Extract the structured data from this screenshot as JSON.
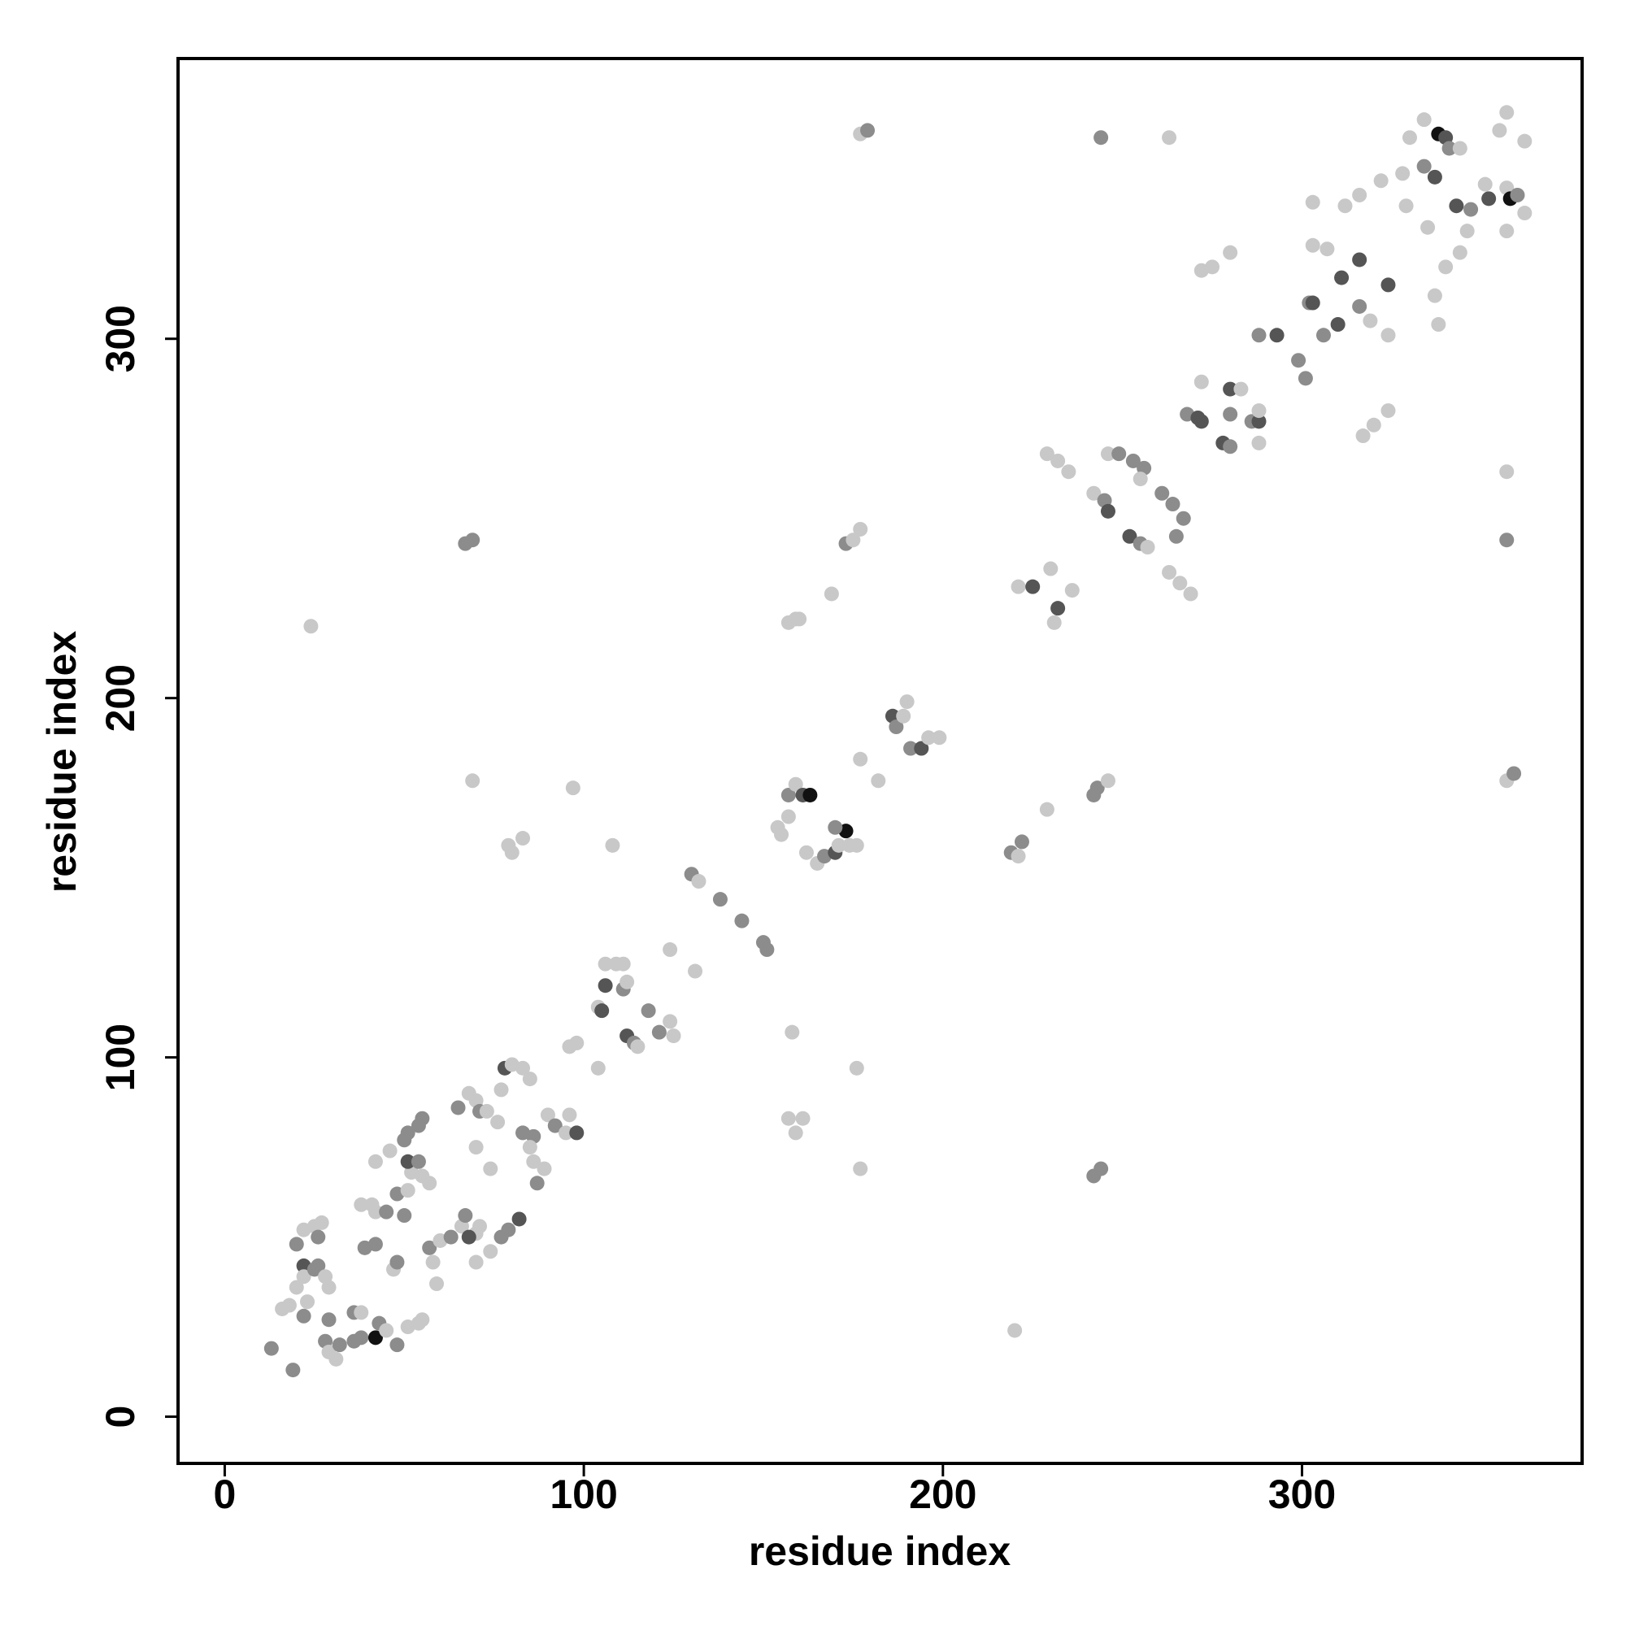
{
  "chart_data": {
    "type": "scatter",
    "xlabel": "residue index",
    "ylabel": "residue index",
    "xlim": [
      -13,
      378
    ],
    "ylim": [
      -13,
      378
    ],
    "xticks": [
      0,
      100,
      200,
      300
    ],
    "yticks": [
      0,
      100,
      200,
      300
    ],
    "x": [
      13,
      19,
      20,
      22,
      16,
      18,
      20,
      22,
      25,
      26,
      22,
      23,
      29,
      28,
      25,
      27,
      22,
      26,
      29,
      28,
      29,
      31,
      32,
      36,
      38,
      36,
      38,
      42,
      43,
      45,
      48,
      51,
      54,
      55,
      39,
      42,
      47,
      48,
      38,
      41,
      42,
      45,
      50,
      48,
      51,
      52,
      51,
      54,
      55,
      57,
      42,
      46,
      50,
      51,
      54,
      55,
      57,
      60,
      58,
      59,
      63,
      66,
      67,
      70,
      71,
      68,
      65,
      70,
      68,
      71,
      73,
      76,
      70,
      74,
      70,
      74,
      77,
      79,
      82,
      77,
      78,
      80,
      83,
      85,
      83,
      86,
      85,
      86,
      87,
      89,
      90,
      92,
      95,
      96,
      98,
      96,
      98,
      104,
      104,
      105,
      106,
      109,
      111,
      106,
      111,
      112,
      112,
      114,
      115,
      118,
      121,
      124,
      125,
      124,
      130,
      132,
      131,
      138,
      144,
      150,
      151,
      157,
      159,
      161,
      158,
      157,
      159,
      160,
      154,
      155,
      157,
      157,
      159,
      161,
      163,
      162,
      165,
      167,
      170,
      171,
      173,
      170,
      174,
      176,
      177,
      182,
      186,
      187,
      190,
      189,
      191,
      194,
      196,
      199,
      169,
      173,
      175,
      177,
      176,
      177,
      177,
      179,
      219,
      221,
      222,
      229,
      221,
      225,
      230,
      232,
      231,
      236,
      220,
      242,
      244,
      242,
      243,
      246,
      244,
      263,
      229,
      232,
      235,
      242,
      245,
      246,
      246,
      249,
      253,
      256,
      252,
      255,
      257,
      255,
      261,
      264,
      265,
      267,
      263,
      266,
      269,
      272,
      268,
      271,
      272,
      278,
      280,
      280,
      283,
      280,
      286,
      288,
      288,
      288,
      272,
      275,
      280,
      288,
      293,
      299,
      301,
      302,
      303,
      306,
      310,
      303,
      307,
      311,
      316,
      324,
      316,
      319,
      324,
      317,
      320,
      324,
      303,
      312,
      316,
      322,
      328,
      329,
      330,
      334,
      337,
      334,
      338,
      340,
      341,
      337,
      338,
      340,
      344,
      335,
      343,
      346,
      344,
      347,
      351,
      352,
      357,
      358,
      360,
      355,
      357,
      362,
      357,
      362,
      357,
      357,
      357,
      359,
      24,
      67,
      69,
      69,
      97,
      79,
      83,
      80,
      108
    ],
    "y": [
      19,
      13,
      48,
      42,
      30,
      31,
      36,
      39,
      41,
      42,
      28,
      32,
      36,
      39,
      53,
      54,
      52,
      50,
      27,
      21,
      18,
      16,
      20,
      21,
      22,
      29,
      29,
      22,
      26,
      24,
      20,
      25,
      26,
      27,
      47,
      48,
      41,
      43,
      59,
      59,
      57,
      57,
      56,
      62,
      63,
      68,
      71,
      71,
      67,
      65,
      71,
      74,
      77,
      79,
      81,
      83,
      47,
      49,
      43,
      37,
      50,
      53,
      56,
      51,
      53,
      50,
      86,
      88,
      90,
      85,
      85,
      82,
      75,
      69,
      43,
      46,
      50,
      52,
      55,
      91,
      97,
      98,
      97,
      94,
      79,
      78,
      75,
      71,
      65,
      69,
      84,
      81,
      79,
      84,
      79,
      103,
      104,
      97,
      114,
      113,
      126,
      126,
      126,
      120,
      119,
      121,
      106,
      104,
      103,
      113,
      107,
      110,
      106,
      130,
      151,
      149,
      124,
      144,
      138,
      132,
      130,
      83,
      79,
      83,
      107,
      221,
      222,
      222,
      164,
      162,
      167,
      173,
      176,
      173,
      173,
      157,
      154,
      156,
      157,
      159,
      163,
      164,
      159,
      159,
      183,
      177,
      195,
      192,
      199,
      195,
      186,
      186,
      189,
      189,
      229,
      243,
      244,
      247,
      97,
      69,
      357,
      358,
      157,
      156,
      160,
      169,
      231,
      231,
      236,
      225,
      221,
      230,
      24,
      67,
      69,
      173,
      175,
      177,
      356,
      356,
      268,
      266,
      263,
      257,
      255,
      252,
      268,
      268,
      266,
      264,
      245,
      243,
      242,
      261,
      257,
      254,
      245,
      250,
      235,
      232,
      229,
      288,
      279,
      278,
      277,
      271,
      270,
      286,
      286,
      279,
      277,
      277,
      280,
      271,
      319,
      320,
      324,
      301,
      301,
      294,
      289,
      310,
      310,
      301,
      304,
      326,
      325,
      317,
      322,
      315,
      309,
      305,
      301,
      273,
      276,
      280,
      338,
      337,
      340,
      344,
      346,
      337,
      356,
      348,
      345,
      361,
      357,
      356,
      353,
      312,
      304,
      320,
      353,
      331,
      337,
      330,
      324,
      336,
      343,
      339,
      342,
      339,
      340,
      358,
      363,
      355,
      330,
      335,
      263,
      244,
      177,
      179,
      220,
      243,
      244,
      177,
      175,
      159,
      161,
      157,
      159
    ],
    "colors": [
      "#8c8c8c",
      "#8c8c8c",
      "#8c8c8c",
      "#555555",
      "#c8c8c8",
      "#c8c8c8",
      "#c8c8c8",
      "#c8c8c8",
      "#8c8c8c",
      "#8c8c8c",
      "#8c8c8c",
      "#c8c8c8",
      "#c8c8c8",
      "#c8c8c8",
      "#c8c8c8",
      "#c8c8c8",
      "#c8c8c8",
      "#8c8c8c",
      "#8c8c8c",
      "#8c8c8c",
      "#c8c8c8",
      "#c8c8c8",
      "#8c8c8c",
      "#8c8c8c",
      "#8c8c8c",
      "#8c8c8c",
      "#c8c8c8",
      "#111111",
      "#8c8c8c",
      "#c8c8c8",
      "#8c8c8c",
      "#c8c8c8",
      "#c8c8c8",
      "#c8c8c8",
      "#8c8c8c",
      "#8c8c8c",
      "#c8c8c8",
      "#8c8c8c",
      "#c8c8c8",
      "#c8c8c8",
      "#c8c8c8",
      "#8c8c8c",
      "#8c8c8c",
      "#8c8c8c",
      "#c8c8c8",
      "#c8c8c8",
      "#555555",
      "#8c8c8c",
      "#c8c8c8",
      "#c8c8c8",
      "#c8c8c8",
      "#c8c8c8",
      "#8c8c8c",
      "#8c8c8c",
      "#8c8c8c",
      "#8c8c8c",
      "#8c8c8c",
      "#c8c8c8",
      "#c8c8c8",
      "#c8c8c8",
      "#8c8c8c",
      "#c8c8c8",
      "#8c8c8c",
      "#c8c8c8",
      "#c8c8c8",
      "#555555",
      "#8c8c8c",
      "#c8c8c8",
      "#c8c8c8",
      "#8c8c8c",
      "#c8c8c8",
      "#c8c8c8",
      "#c8c8c8",
      "#c8c8c8",
      "#c8c8c8",
      "#c8c8c8",
      "#8c8c8c",
      "#8c8c8c",
      "#555555",
      "#c8c8c8",
      "#555555",
      "#c8c8c8",
      "#c8c8c8",
      "#c8c8c8",
      "#8c8c8c",
      "#8c8c8c",
      "#c8c8c8",
      "#c8c8c8",
      "#8c8c8c",
      "#c8c8c8",
      "#c8c8c8",
      "#8c8c8c",
      "#c8c8c8",
      "#c8c8c8",
      "#555555",
      "#c8c8c8",
      "#c8c8c8",
      "#c8c8c8",
      "#c8c8c8",
      "#555555",
      "#c8c8c8",
      "#c8c8c8",
      "#c8c8c8",
      "#555555",
      "#8c8c8c",
      "#c8c8c8",
      "#555555",
      "#8c8c8c",
      "#c8c8c8",
      "#8c8c8c",
      "#8c8c8c",
      "#c8c8c8",
      "#c8c8c8",
      "#c8c8c8",
      "#8c8c8c",
      "#c8c8c8",
      "#c8c8c8",
      "#8c8c8c",
      "#8c8c8c",
      "#8c8c8c",
      "#8c8c8c",
      "#c8c8c8",
      "#c8c8c8",
      "#c8c8c8",
      "#c8c8c8",
      "#c8c8c8",
      "#c8c8c8",
      "#c8c8c8",
      "#c8c8c8",
      "#c8c8c8",
      "#c8c8c8",
      "#8c8c8c",
      "#c8c8c8",
      "#555555",
      "#111111",
      "#c8c8c8",
      "#c8c8c8",
      "#8c8c8c",
      "#555555",
      "#c8c8c8",
      "#111111",
      "#8c8c8c",
      "#c8c8c8",
      "#c8c8c8",
      "#c8c8c8",
      "#c8c8c8",
      "#555555",
      "#8c8c8c",
      "#c8c8c8",
      "#c8c8c8",
      "#8c8c8c",
      "#555555",
      "#c8c8c8",
      "#c8c8c8",
      "#c8c8c8",
      "#8c8c8c",
      "#c8c8c8",
      "#c8c8c8",
      "#c8c8c8",
      "#c8c8c8",
      "#c8c8c8",
      "#8c8c8c",
      "#8c8c8c",
      "#c8c8c8",
      "#8c8c8c",
      "#c8c8c8",
      "#c8c8c8",
      "#555555",
      "#c8c8c8",
      "#555555",
      "#c8c8c8",
      "#c8c8c8",
      "#c8c8c8",
      "#8c8c8c",
      "#8c8c8c",
      "#8c8c8c",
      "#8c8c8c",
      "#c8c8c8",
      "#8c8c8c",
      "#c8c8c8",
      "#c8c8c8",
      "#c8c8c8",
      "#c8c8c8",
      "#c8c8c8",
      "#8c8c8c",
      "#555555",
      "#c8c8c8",
      "#8c8c8c",
      "#8c8c8c",
      "#8c8c8c",
      "#555555",
      "#8c8c8c",
      "#c8c8c8",
      "#c8c8c8",
      "#8c8c8c",
      "#8c8c8c",
      "#8c8c8c",
      "#8c8c8c",
      "#c8c8c8",
      "#c8c8c8",
      "#c8c8c8",
      "#c8c8c8",
      "#8c8c8c",
      "#555555",
      "#555555",
      "#555555",
      "#8c8c8c",
      "#555555",
      "#c8c8c8",
      "#8c8c8c",
      "#8c8c8c",
      "#555555",
      "#c8c8c8",
      "#c8c8c8",
      "#c8c8c8",
      "#c8c8c8",
      "#c8c8c8",
      "#8c8c8c",
      "#555555",
      "#8c8c8c",
      "#8c8c8c",
      "#8c8c8c",
      "#555555",
      "#8c8c8c",
      "#555555",
      "#c8c8c8",
      "#c8c8c8",
      "#555555",
      "#555555",
      "#555555",
      "#8c8c8c",
      "#c8c8c8",
      "#c8c8c8",
      "#c8c8c8",
      "#c8c8c8",
      "#c8c8c8",
      "#c8c8c8",
      "#c8c8c8",
      "#c8c8c8",
      "#c8c8c8",
      "#c8c8c8",
      "#c8c8c8",
      "#c8c8c8",
      "#8c8c8c",
      "#555555",
      "#c8c8c8",
      "#111111",
      "#555555",
      "#8c8c8c",
      "#c8c8c8",
      "#c8c8c8",
      "#c8c8c8",
      "#c8c8c8",
      "#c8c8c8",
      "#555555",
      "#c8c8c8",
      "#c8c8c8",
      "#8c8c8c",
      "#c8c8c8",
      "#555555",
      "#c8c8c8",
      "#111111",
      "#8c8c8c",
      "#c8c8c8",
      "#c8c8c8",
      "#c8c8c8",
      "#c8c8c8",
      "#c8c8c8",
      "#c8c8c8",
      "#8c8c8c",
      "#c8c8c8",
      "#8c8c8c",
      "#c8c8c8",
      "#8c8c8c",
      "#8c8c8c",
      "#c8c8c8",
      "#c8c8c8",
      "#c8c8c8",
      "#c8c8c8",
      "#c8c8c8",
      "#c8c8c8"
    ]
  }
}
